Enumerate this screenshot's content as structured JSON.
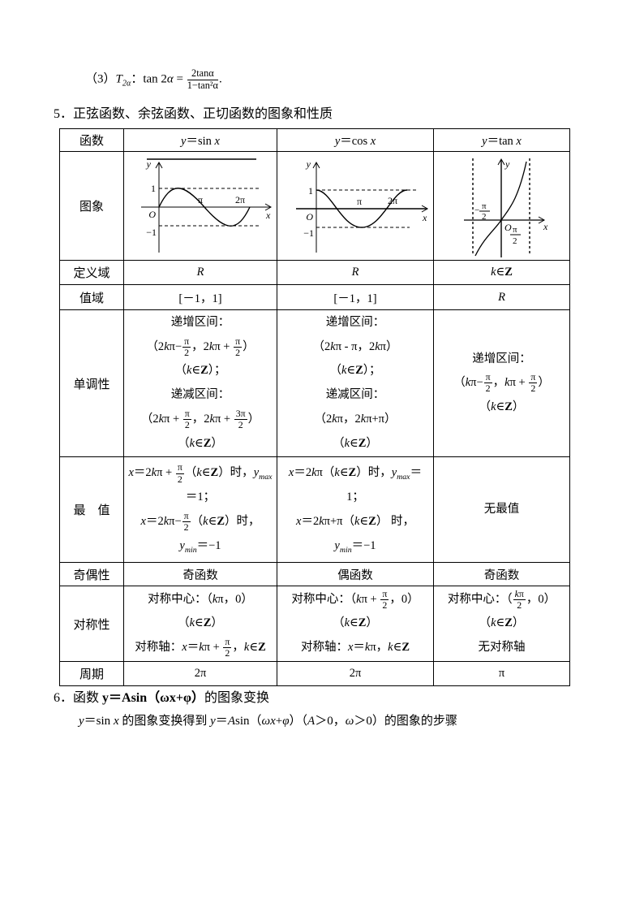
{
  "intro": {
    "formula3": "（3）*T*~2α~：tan 2*α* = {2tanα/1−tan²α}."
  },
  "heading5": "5．正弦函数、余弦函数、正切函数的图象和性质",
  "table": {
    "header": {
      "label": "函数",
      "sin": "*y*＝sin *x*",
      "cos": "*y*＝cos *x*",
      "tan": "*y*＝tan *x*"
    },
    "rows": {
      "graph": {
        "label": "图象"
      },
      "domain": {
        "label": "定义域",
        "sin": "*R*",
        "cos": "*R*",
        "tan": "*k*∈#Z#"
      },
      "range": {
        "label": "值域",
        "sin": "[－1，1]",
        "cos": "[－1，1]",
        "tan": "*R*"
      },
      "monotonic": {
        "label": "单调性",
        "sin": "递增区间：\n（2*k*π−{π/2}，2*k*π + {π/2}）\n（*k*∈#Z#）；\n递减区间：\n（2*k*π + {π/2}，2*k*π + {3π/2}）\n（*k*∈#Z#）",
        "cos": "递增区间：\n（2*k*π - π，2*k*π）\n（*k*∈#Z#）；\n递减区间：\n（2*k*π，2*k*π+π）\n（*k*∈#Z#）",
        "tan": "递增区间：\n（*k*π−{π/2}，*k*π + {π/2}）\n（*k*∈#Z#）"
      },
      "extrema": {
        "label": "最　值",
        "sin": "*x*＝2*k*π + {π/2}（*k*∈#Z#）时，*y*~max~\n＝1；\n*x*＝2*k*π−{π/2}（*k*∈#Z#）时，\n*y*~min~＝−1",
        "cos": "*x*＝2*k*π（*k*∈#Z#）时，*y*~max~＝\n1；\n*x*＝2*k*π+π（*k*∈#Z#） 时，\n*y*~min~＝−1",
        "tan": "无最值"
      },
      "parity": {
        "label": "奇偶性",
        "sin": "奇函数",
        "cos": "偶函数",
        "tan": "奇函数"
      },
      "symmetry": {
        "label": "对称性",
        "sin": "对称中心：（*k*π，0）\n（*k*∈#Z#）\n对称轴：*x*＝*k*π + {π/2}，*k*∈#Z#",
        "cos": "对称中心：（*k*π + {π/2}，0）\n（*k*∈#Z#）\n对称轴：*x*＝*k*π，*k*∈#Z#",
        "tan": "对称中心：（{*k*π/2}，0）\n（*k*∈#Z#）\n无对称轴"
      },
      "period": {
        "label": "周期",
        "sin": "2π",
        "cos": "2π",
        "tan": "π"
      }
    }
  },
  "graphs": {
    "sin": {
      "y": "y",
      "x": "x",
      "o": "O",
      "one": "1",
      "neg_one": "−1",
      "pi": "π",
      "two_pi": "2π"
    },
    "cos": {
      "y": "y",
      "x": "x",
      "o": "O",
      "one": "1",
      "neg_one": "−1",
      "pi": "π",
      "two_pi": "2π"
    },
    "tan": {
      "y": "y",
      "x": "x",
      "o": "O",
      "left_minus": "−",
      "left_num": "π",
      "left_den": "2",
      "right_num": "π",
      "right_den": "2"
    }
  },
  "heading6": "6．函数 #y＝Asin（ωx+φ）#的图象变换",
  "subtext6": "*y*＝sin *x* 的图象变换得到 *y*＝*A*sin（*ωx*+*φ*）（*A*＞0，*ω*＞0）的图象的步骤"
}
